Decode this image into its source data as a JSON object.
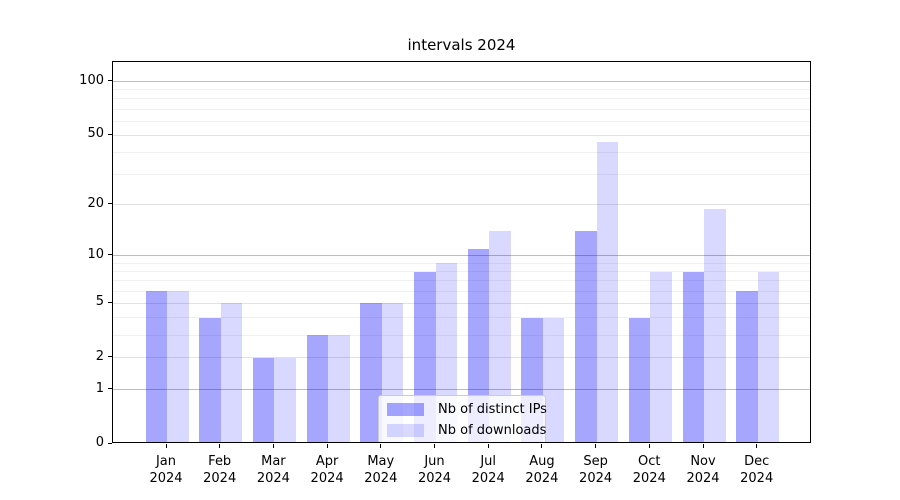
{
  "chart_data": {
    "type": "bar",
    "title": "intervals 2024",
    "categories": [
      "Jan 2024",
      "Feb 2024",
      "Mar 2024",
      "Apr 2024",
      "May 2024",
      "Jun 2024",
      "Jul 2024",
      "Aug 2024",
      "Sep 2024",
      "Oct 2024",
      "Nov 2024",
      "Dec 2024"
    ],
    "series": [
      {
        "name": "Nb of distinct IPs",
        "color": "rgba(0,0,255,0.35)",
        "values": [
          6,
          4,
          2,
          3,
          5,
          8,
          11,
          4,
          14,
          4,
          8,
          6
        ]
      },
      {
        "name": "Nb of downloads",
        "color": "rgba(0,0,255,0.15)",
        "values": [
          6,
          5,
          2,
          3,
          5,
          9,
          14,
          4,
          46,
          8,
          19,
          8
        ]
      }
    ],
    "xlabel": "",
    "ylabel": "",
    "yscale": "log1p",
    "ylim": [
      0,
      129
    ],
    "ytick_labels": [
      "100",
      "50",
      "20",
      "10",
      "5",
      "2",
      "1",
      "0"
    ],
    "ytick_values": [
      100,
      50,
      20,
      10,
      5,
      2,
      1,
      0
    ],
    "minor_grid_values": [
      3,
      4,
      6,
      7,
      8,
      9,
      30,
      40,
      60,
      70,
      80,
      90
    ],
    "grid": true,
    "legend_position": "lower center"
  }
}
